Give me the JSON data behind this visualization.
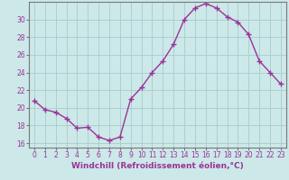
{
  "x": [
    0,
    1,
    2,
    3,
    4,
    5,
    6,
    7,
    8,
    9,
    10,
    11,
    12,
    13,
    14,
    15,
    16,
    17,
    18,
    19,
    20,
    21,
    22,
    23
  ],
  "y": [
    20.8,
    19.8,
    19.5,
    18.8,
    17.7,
    17.8,
    16.7,
    16.3,
    16.7,
    21.0,
    22.3,
    24.0,
    25.3,
    27.2,
    30.0,
    31.3,
    31.8,
    31.3,
    30.3,
    29.7,
    28.3,
    25.3,
    24.0,
    22.7
  ],
  "line_color": "#993399",
  "marker": "+",
  "marker_size": 4,
  "marker_linewidth": 1.0,
  "bg_color": "#cce8e8",
  "grid_color": "#aacccc",
  "axis_label_color": "#993399",
  "tick_color": "#993399",
  "spine_color": "#777777",
  "xlabel": "Windchill (Refroidissement éolien,°C)",
  "xlim": [
    -0.5,
    23.5
  ],
  "ylim": [
    15.5,
    32.0
  ],
  "yticks": [
    16,
    18,
    20,
    22,
    24,
    26,
    28,
    30
  ],
  "xticks": [
    0,
    1,
    2,
    3,
    4,
    5,
    6,
    7,
    8,
    9,
    10,
    11,
    12,
    13,
    14,
    15,
    16,
    17,
    18,
    19,
    20,
    21,
    22,
    23
  ],
  "tick_fontsize": 5.5,
  "xlabel_fontsize": 6.5,
  "linewidth": 1.0
}
